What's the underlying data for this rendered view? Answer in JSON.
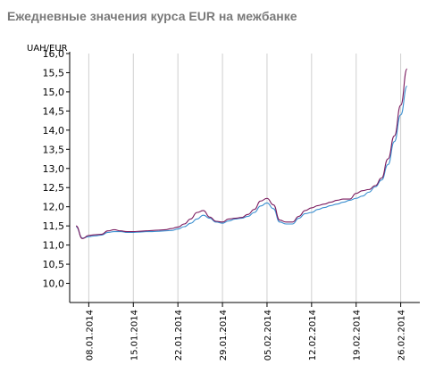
{
  "chart_data": {
    "type": "line",
    "title": "Ежедневные значения курса EUR на межбанке",
    "ylabel": "UAH/EUR",
    "xlabel": "",
    "ylim": [
      9.5,
      16.0
    ],
    "yticks": [
      "10,0",
      "10,5",
      "11,0",
      "11,5",
      "12,0",
      "12,5",
      "13,0",
      "13,5",
      "14,0",
      "14,5",
      "15,0",
      "15,5",
      "16,0"
    ],
    "xticks": [
      {
        "label": "08.01.2014",
        "x": 8
      },
      {
        "label": "15.01.2014",
        "x": 15
      },
      {
        "label": "22.01.2014",
        "x": 22
      },
      {
        "label": "29.01.2014",
        "x": 29
      },
      {
        "label": "05.02.2014",
        "x": 36
      },
      {
        "label": "12.02.2014",
        "x": 43
      },
      {
        "label": "19.02.2014",
        "x": 50
      },
      {
        "label": "26.02.2014",
        "x": 57
      }
    ],
    "grid": {
      "vertical": true,
      "horizontal": false
    },
    "series": [
      {
        "color": "#3a8fd0",
        "x": [
          6,
          7,
          8,
          9,
          10,
          11,
          12,
          13,
          14,
          15,
          16,
          17,
          18,
          19,
          20,
          21,
          22,
          23,
          24,
          25,
          26,
          27,
          28,
          29,
          30,
          31,
          32,
          33,
          34,
          35,
          36,
          37,
          38,
          39,
          40,
          41,
          42,
          43,
          44,
          45,
          46,
          47,
          48,
          49,
          50,
          51,
          52,
          53,
          54,
          55,
          56,
          57,
          58
        ],
        "values": [
          11.48,
          11.18,
          11.22,
          11.24,
          11.26,
          11.33,
          11.35,
          11.35,
          11.33,
          11.33,
          11.34,
          11.35,
          11.35,
          11.36,
          11.37,
          11.38,
          11.42,
          11.48,
          11.57,
          11.68,
          11.78,
          11.7,
          11.6,
          11.57,
          11.63,
          11.68,
          11.7,
          11.75,
          11.85,
          12.02,
          12.1,
          11.95,
          11.6,
          11.55,
          11.55,
          11.7,
          11.82,
          11.85,
          11.93,
          11.98,
          12.03,
          12.07,
          12.12,
          12.17,
          12.22,
          12.28,
          12.38,
          12.52,
          12.7,
          13.1,
          13.7,
          14.4,
          15.15
        ]
      },
      {
        "color": "#7a1a5e",
        "x": [
          6,
          7,
          8,
          9,
          10,
          11,
          12,
          13,
          14,
          15,
          16,
          17,
          18,
          19,
          20,
          21,
          22,
          23,
          24,
          25,
          26,
          27,
          28,
          29,
          30,
          31,
          32,
          33,
          34,
          35,
          36,
          37,
          38,
          39,
          40,
          41,
          42,
          43,
          44,
          45,
          46,
          47,
          48,
          49,
          50,
          51,
          52,
          53,
          54,
          55,
          56,
          57,
          58
        ],
        "values": [
          11.5,
          11.17,
          11.25,
          11.27,
          11.28,
          11.37,
          11.4,
          11.37,
          11.35,
          11.35,
          11.36,
          11.37,
          11.38,
          11.39,
          11.4,
          11.43,
          11.47,
          11.55,
          11.68,
          11.85,
          11.9,
          11.73,
          11.62,
          11.6,
          11.68,
          11.7,
          11.72,
          11.8,
          11.93,
          12.15,
          12.22,
          12.05,
          11.65,
          11.6,
          11.6,
          11.75,
          11.9,
          11.97,
          12.03,
          12.07,
          12.12,
          12.17,
          12.2,
          12.2,
          12.35,
          12.42,
          12.45,
          12.55,
          12.75,
          13.25,
          13.85,
          14.65,
          15.6
        ]
      }
    ]
  }
}
